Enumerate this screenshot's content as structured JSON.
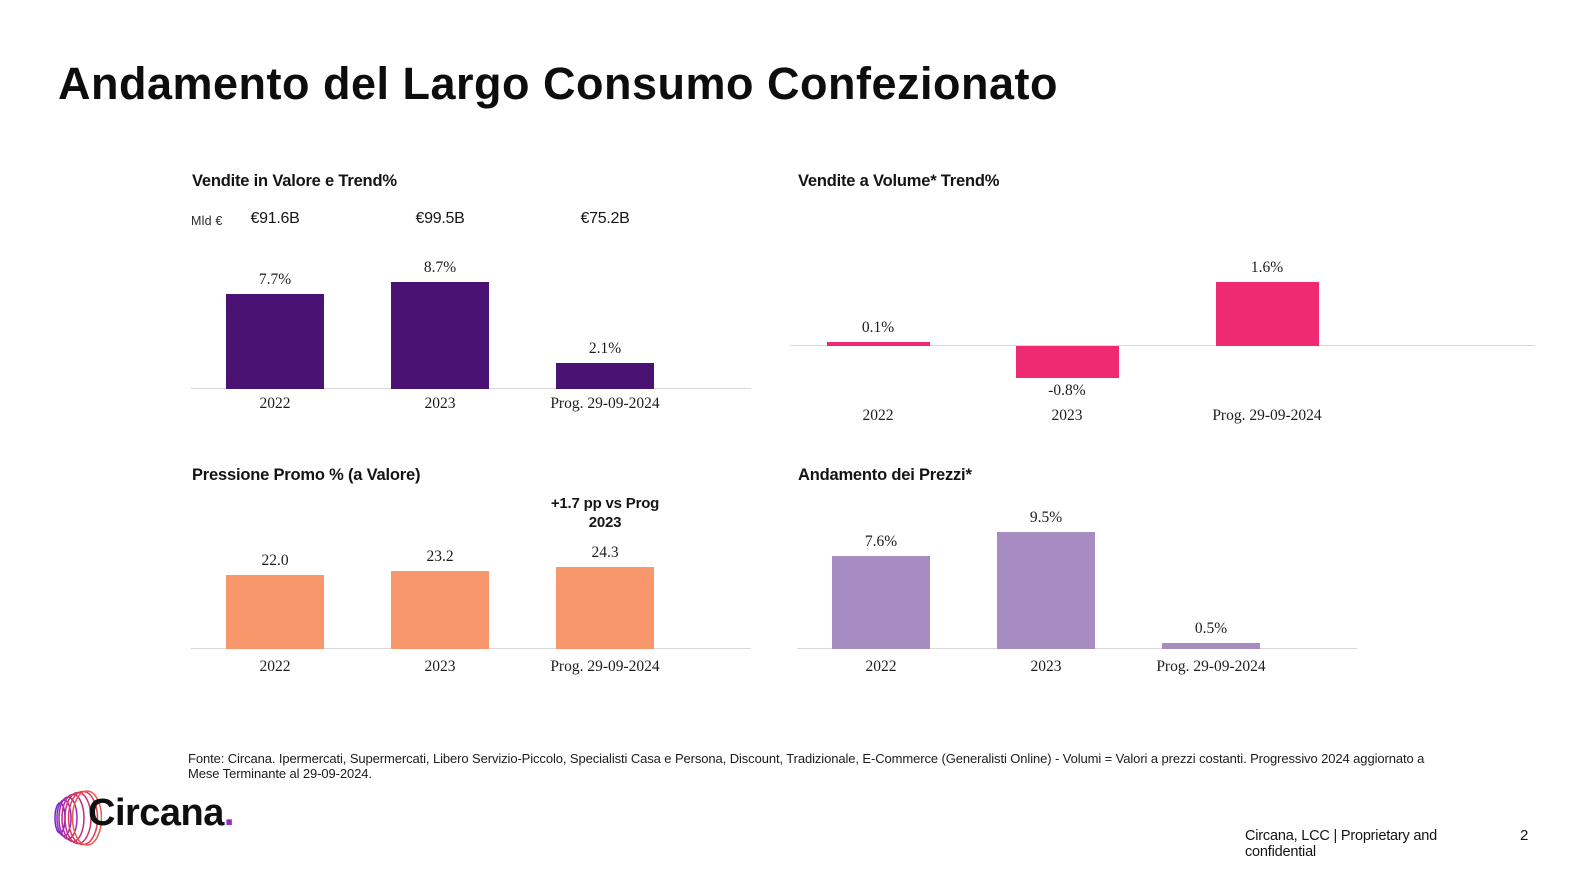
{
  "slide": {
    "title": "Andamento del Largo Consumo Confezionato",
    "source_note": "Fonte: Circana. Ipermercati, Supermercati, Libero Servizio-Piccolo, Specialisti Casa e Persona, Discount, Tradizionale, E-Commerce (Generalisti Online) - Volumi = Valori a prezzi costanti. Progressivo 2024 aggiornato a Mese Terminante al 29-09-2024.",
    "footer_right": "Circana, LCC |  Proprietary and confidential",
    "page_number": "2",
    "brand": {
      "logo_text": "Circana",
      "logo_dot": ".",
      "logo_dot_color": "#8b2fc9",
      "logo_ring_colors": [
        "#7226c9",
        "#8a2bc2",
        "#a428ab",
        "#bf2a8e",
        "#d22f6d",
        "#e13a55",
        "#eb5a48"
      ]
    }
  },
  "chart_data": [
    {
      "type": "bar",
      "title": "Vendite in Valore e Trend%",
      "unit_label": "Mld €",
      "top_labels": [
        "€91.6B",
        "€99.5B",
        "€75.2B"
      ],
      "categories": [
        "2022",
        "2023",
        "Prog. 29-09-2024"
      ],
      "values": [
        7.7,
        8.7,
        2.1
      ],
      "value_labels": [
        "7.7%",
        "8.7%",
        "2.1%"
      ],
      "color": "#4a1272",
      "ylim": [
        0,
        10
      ],
      "grid": false,
      "legend": false
    },
    {
      "type": "bar",
      "title": "Vendite a Volume* Trend%",
      "categories": [
        "2022",
        "2023",
        "Prog. 29-09-2024"
      ],
      "values": [
        0.1,
        -0.8,
        1.6
      ],
      "value_labels": [
        "0.1%",
        "-0.8%",
        "1.6%"
      ],
      "color": "#ee2a72",
      "ylim": [
        -1.0,
        1.65
      ],
      "grid": false,
      "legend": false
    },
    {
      "type": "bar",
      "title": "Pressione Promo % (a Valore)",
      "annotation": "+1.7 pp vs Prog\n2023",
      "categories": [
        "2022",
        "2023",
        "Prog. 29-09-2024"
      ],
      "values": [
        22.0,
        23.2,
        24.3
      ],
      "value_labels": [
        "22.0",
        "23.2",
        "24.3"
      ],
      "color": "#f9976c",
      "ylim": [
        0,
        25
      ],
      "grid": false,
      "legend": false
    },
    {
      "type": "bar",
      "title": "Andamento dei Prezzi*",
      "categories": [
        "2022",
        "2023",
        "Prog. 29-09-2024"
      ],
      "values": [
        7.6,
        9.5,
        0.5
      ],
      "value_labels": [
        "7.6%",
        "9.5%",
        "0.5%"
      ],
      "color": "#a68cc0",
      "ylim": [
        0,
        9.6
      ],
      "grid": false,
      "legend": false
    }
  ]
}
